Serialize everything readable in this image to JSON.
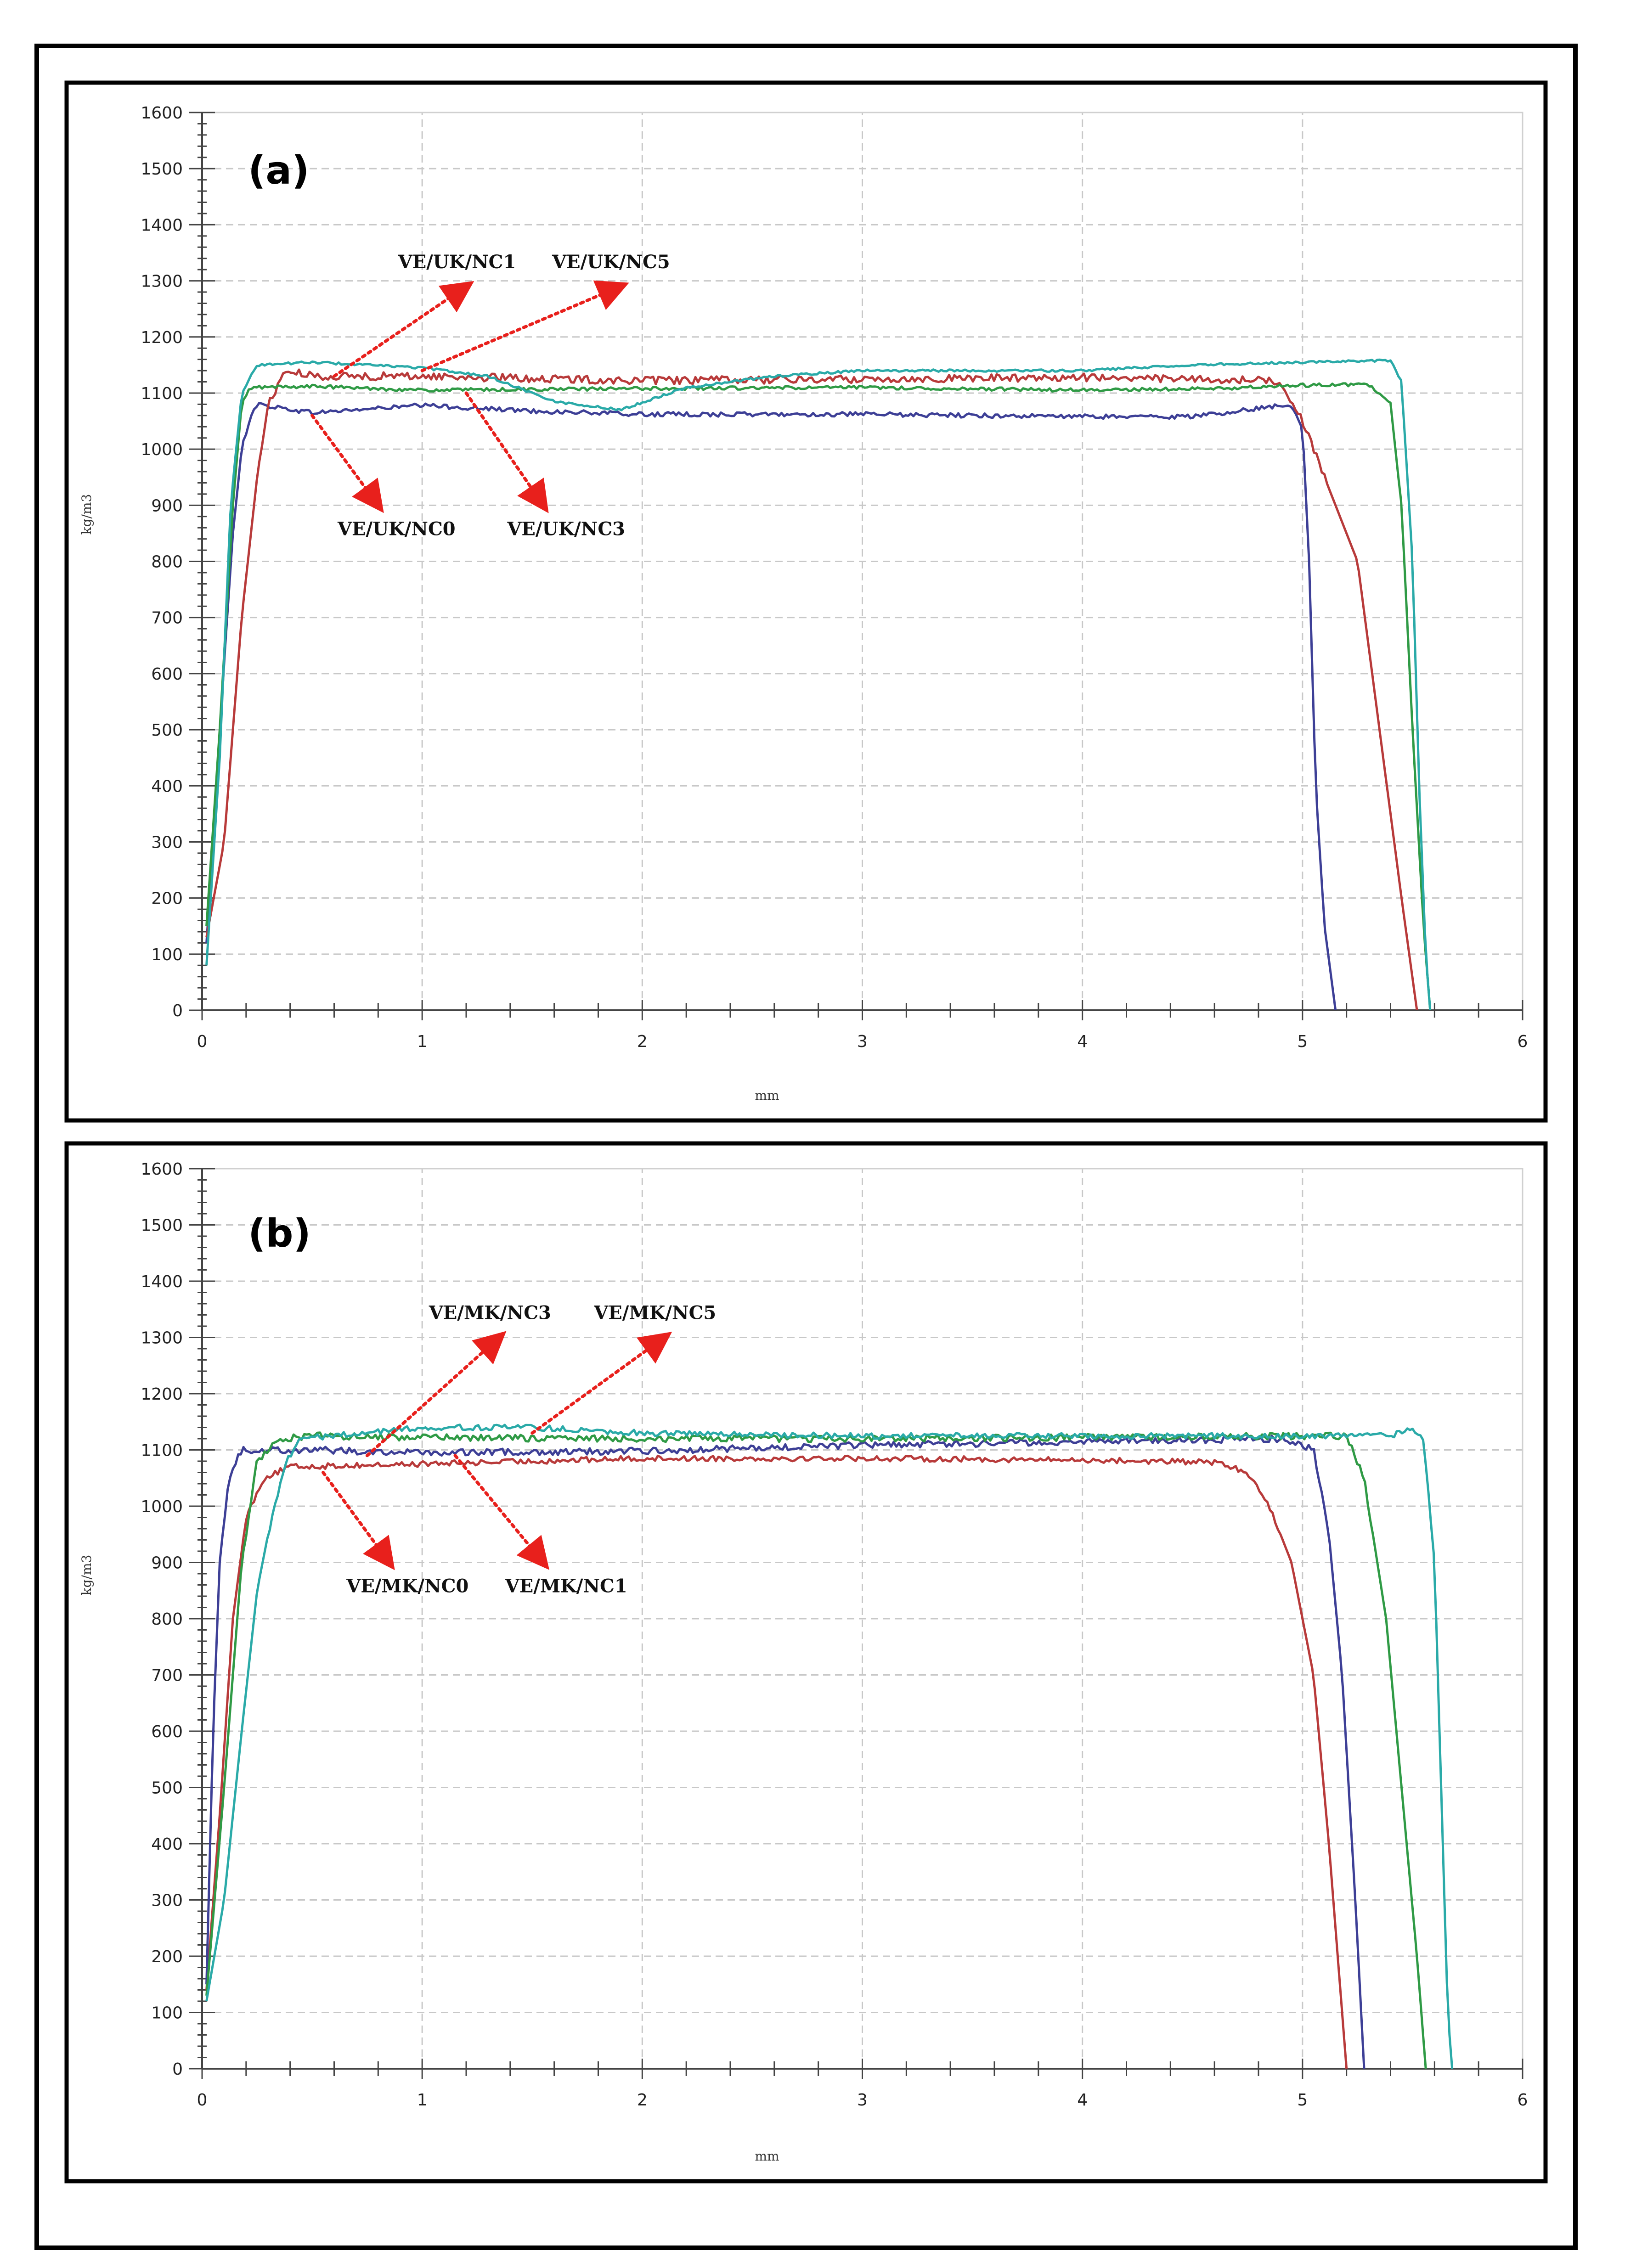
{
  "figure": {
    "colors": {
      "red_arrow": "#e8201c",
      "grid": "#c8c8c8",
      "border": "#000000"
    }
  },
  "chart_data": [
    {
      "type": "line",
      "panel_label": "(a)",
      "xlabel": "mm",
      "ylabel": "kg/m3",
      "xlim": [
        0,
        6
      ],
      "ylim": [
        0,
        1600
      ],
      "x_ticks": [
        "0",
        "1",
        "2",
        "3",
        "4",
        "5",
        "6"
      ],
      "y_ticks": [
        "0",
        "100",
        "200",
        "300",
        "400",
        "500",
        "600",
        "700",
        "800",
        "900",
        "1000",
        "1100",
        "1200",
        "1300",
        "1400",
        "1500",
        "1600"
      ],
      "grid": true,
      "series": [
        {
          "name": "VE/UK/NC0",
          "color": "#3d3f96",
          "noise": 4,
          "points": [
            [
              0.02,
              120
            ],
            [
              0.06,
              350
            ],
            [
              0.1,
              620
            ],
            [
              0.14,
              850
            ],
            [
              0.18,
              1000
            ],
            [
              0.22,
              1060
            ],
            [
              0.25,
              1080
            ],
            [
              0.5,
              1065
            ],
            [
              1.0,
              1078
            ],
            [
              1.5,
              1068
            ],
            [
              2.0,
              1062
            ],
            [
              3.0,
              1062
            ],
            [
              4.0,
              1058
            ],
            [
              4.5,
              1058
            ],
            [
              4.95,
              1080
            ],
            [
              5.0,
              1040
            ],
            [
              5.03,
              800
            ],
            [
              5.06,
              400
            ],
            [
              5.1,
              150
            ],
            [
              5.15,
              0
            ]
          ]
        },
        {
          "name": "VE/UK/NC1",
          "color": "#b83a3a",
          "noise": 7,
          "points": [
            [
              0.02,
              130
            ],
            [
              0.1,
              300
            ],
            [
              0.18,
              700
            ],
            [
              0.25,
              950
            ],
            [
              0.3,
              1080
            ],
            [
              0.38,
              1140
            ],
            [
              0.5,
              1130
            ],
            [
              1.0,
              1130
            ],
            [
              2.0,
              1122
            ],
            [
              3.0,
              1125
            ],
            [
              4.0,
              1128
            ],
            [
              4.9,
              1122
            ],
            [
              5.0,
              1050
            ],
            [
              5.15,
              900
            ],
            [
              5.25,
              800
            ],
            [
              5.35,
              500
            ],
            [
              5.45,
              200
            ],
            [
              5.52,
              0
            ]
          ]
        },
        {
          "name": "VE/UK/NC3",
          "color": "#2f9a45",
          "noise": 3,
          "points": [
            [
              0.02,
              150
            ],
            [
              0.08,
              500
            ],
            [
              0.14,
              900
            ],
            [
              0.18,
              1080
            ],
            [
              0.22,
              1110
            ],
            [
              0.5,
              1112
            ],
            [
              1.0,
              1105
            ],
            [
              2.0,
              1108
            ],
            [
              3.0,
              1110
            ],
            [
              4.0,
              1105
            ],
            [
              4.6,
              1108
            ],
            [
              5.1,
              1115
            ],
            [
              5.3,
              1115
            ],
            [
              5.4,
              1080
            ],
            [
              5.45,
              900
            ],
            [
              5.5,
              500
            ],
            [
              5.55,
              150
            ],
            [
              5.58,
              0
            ]
          ]
        },
        {
          "name": "VE/UK/NC5",
          "color": "#2aaaa8",
          "noise": 2,
          "points": [
            [
              0.02,
              80
            ],
            [
              0.08,
              450
            ],
            [
              0.13,
              900
            ],
            [
              0.18,
              1100
            ],
            [
              0.25,
              1150
            ],
            [
              0.5,
              1155
            ],
            [
              1.0,
              1145
            ],
            [
              1.3,
              1130
            ],
            [
              1.6,
              1085
            ],
            [
              1.9,
              1070
            ],
            [
              2.2,
              1110
            ],
            [
              2.6,
              1130
            ],
            [
              3.0,
              1140
            ],
            [
              3.5,
              1140
            ],
            [
              4.0,
              1140
            ],
            [
              4.5,
              1150
            ],
            [
              5.0,
              1155
            ],
            [
              5.4,
              1158
            ],
            [
              5.45,
              1120
            ],
            [
              5.5,
              800
            ],
            [
              5.53,
              400
            ],
            [
              5.56,
              100
            ],
            [
              5.58,
              0
            ]
          ]
        }
      ],
      "annotations": [
        {
          "text": "VE/UK/NC1",
          "from": [
            0.6,
            1130
          ],
          "to": [
            1.2,
            1290
          ]
        },
        {
          "text": "VE/UK/NC5",
          "from": [
            1.0,
            1140
          ],
          "to": [
            1.9,
            1290
          ]
        },
        {
          "text": "VE/UK/NC0",
          "from": [
            0.5,
            1060
          ],
          "to": [
            0.8,
            900
          ]
        },
        {
          "text": "VE/UK/NC3",
          "from": [
            1.2,
            1100
          ],
          "to": [
            1.55,
            900
          ]
        }
      ]
    },
    {
      "type": "line",
      "panel_label": "(b)",
      "xlabel": "mm",
      "ylabel": "kg/m3",
      "xlim": [
        0,
        6
      ],
      "ylim": [
        0,
        1600
      ],
      "x_ticks": [
        "0",
        "1",
        "2",
        "3",
        "4",
        "5",
        "6"
      ],
      "y_ticks": [
        "0",
        "100",
        "200",
        "300",
        "400",
        "500",
        "600",
        "700",
        "800",
        "900",
        "1000",
        "1100",
        "1200",
        "1300",
        "1400",
        "1500",
        "1600"
      ],
      "grid": true,
      "series": [
        {
          "name": "VE/MK/NC0",
          "color": "#b83a3a",
          "noise": 5,
          "points": [
            [
              0.02,
              140
            ],
            [
              0.08,
              450
            ],
            [
              0.14,
              800
            ],
            [
              0.2,
              980
            ],
            [
              0.28,
              1050
            ],
            [
              0.4,
              1070
            ],
            [
              1.0,
              1075
            ],
            [
              2.0,
              1085
            ],
            [
              3.0,
              1085
            ],
            [
              4.0,
              1082
            ],
            [
              4.6,
              1078
            ],
            [
              4.75,
              1060
            ],
            [
              4.85,
              1000
            ],
            [
              4.95,
              900
            ],
            [
              5.05,
              700
            ],
            [
              5.12,
              400
            ],
            [
              5.18,
              100
            ],
            [
              5.2,
              0
            ]
          ]
        },
        {
          "name": "VE/MK/NC1",
          "color": "#3d3f96",
          "noise": 6,
          "points": [
            [
              0.02,
              150
            ],
            [
              0.05,
              600
            ],
            [
              0.08,
              900
            ],
            [
              0.12,
              1050
            ],
            [
              0.18,
              1100
            ],
            [
              0.5,
              1100
            ],
            [
              1.0,
              1095
            ],
            [
              2.0,
              1098
            ],
            [
              3.0,
              1108
            ],
            [
              4.0,
              1115
            ],
            [
              4.9,
              1120
            ],
            [
              5.05,
              1100
            ],
            [
              5.12,
              950
            ],
            [
              5.18,
              700
            ],
            [
              5.24,
              300
            ],
            [
              5.28,
              0
            ]
          ]
        },
        {
          "name": "VE/MK/NC3",
          "color": "#2f9a45",
          "noise": 6,
          "points": [
            [
              0.02,
              130
            ],
            [
              0.1,
              500
            ],
            [
              0.18,
              900
            ],
            [
              0.25,
              1080
            ],
            [
              0.35,
              1120
            ],
            [
              0.5,
              1125
            ],
            [
              1.0,
              1122
            ],
            [
              2.0,
              1120
            ],
            [
              3.0,
              1120
            ],
            [
              4.0,
              1122
            ],
            [
              5.0,
              1125
            ],
            [
              5.2,
              1125
            ],
            [
              5.28,
              1050
            ],
            [
              5.38,
              800
            ],
            [
              5.45,
              500
            ],
            [
              5.52,
              200
            ],
            [
              5.56,
              0
            ]
          ]
        },
        {
          "name": "VE/MK/NC5",
          "color": "#2aaaa8",
          "noise": 5,
          "points": [
            [
              0.02,
              120
            ],
            [
              0.1,
              300
            ],
            [
              0.18,
              600
            ],
            [
              0.25,
              850
            ],
            [
              0.3,
              950
            ],
            [
              0.38,
              1080
            ],
            [
              0.45,
              1120
            ],
            [
              1.0,
              1140
            ],
            [
              1.5,
              1140
            ],
            [
              2.0,
              1130
            ],
            [
              3.0,
              1125
            ],
            [
              4.0,
              1125
            ],
            [
              5.0,
              1125
            ],
            [
              5.4,
              1125
            ],
            [
              5.5,
              1140
            ],
            [
              5.55,
              1120
            ],
            [
              5.6,
              900
            ],
            [
              5.63,
              500
            ],
            [
              5.66,
              100
            ],
            [
              5.68,
              0
            ]
          ]
        }
      ],
      "annotations": [
        {
          "text": "VE/MK/NC3",
          "from": [
            0.75,
            1090
          ],
          "to": [
            1.35,
            1300
          ]
        },
        {
          "text": "VE/MK/NC5",
          "from": [
            1.5,
            1130
          ],
          "to": [
            2.1,
            1300
          ]
        },
        {
          "text": "VE/MK/NC0",
          "from": [
            0.55,
            1060
          ],
          "to": [
            0.85,
            900
          ]
        },
        {
          "text": "VE/MK/NC1",
          "from": [
            1.15,
            1090
          ],
          "to": [
            1.55,
            900
          ]
        }
      ]
    }
  ]
}
